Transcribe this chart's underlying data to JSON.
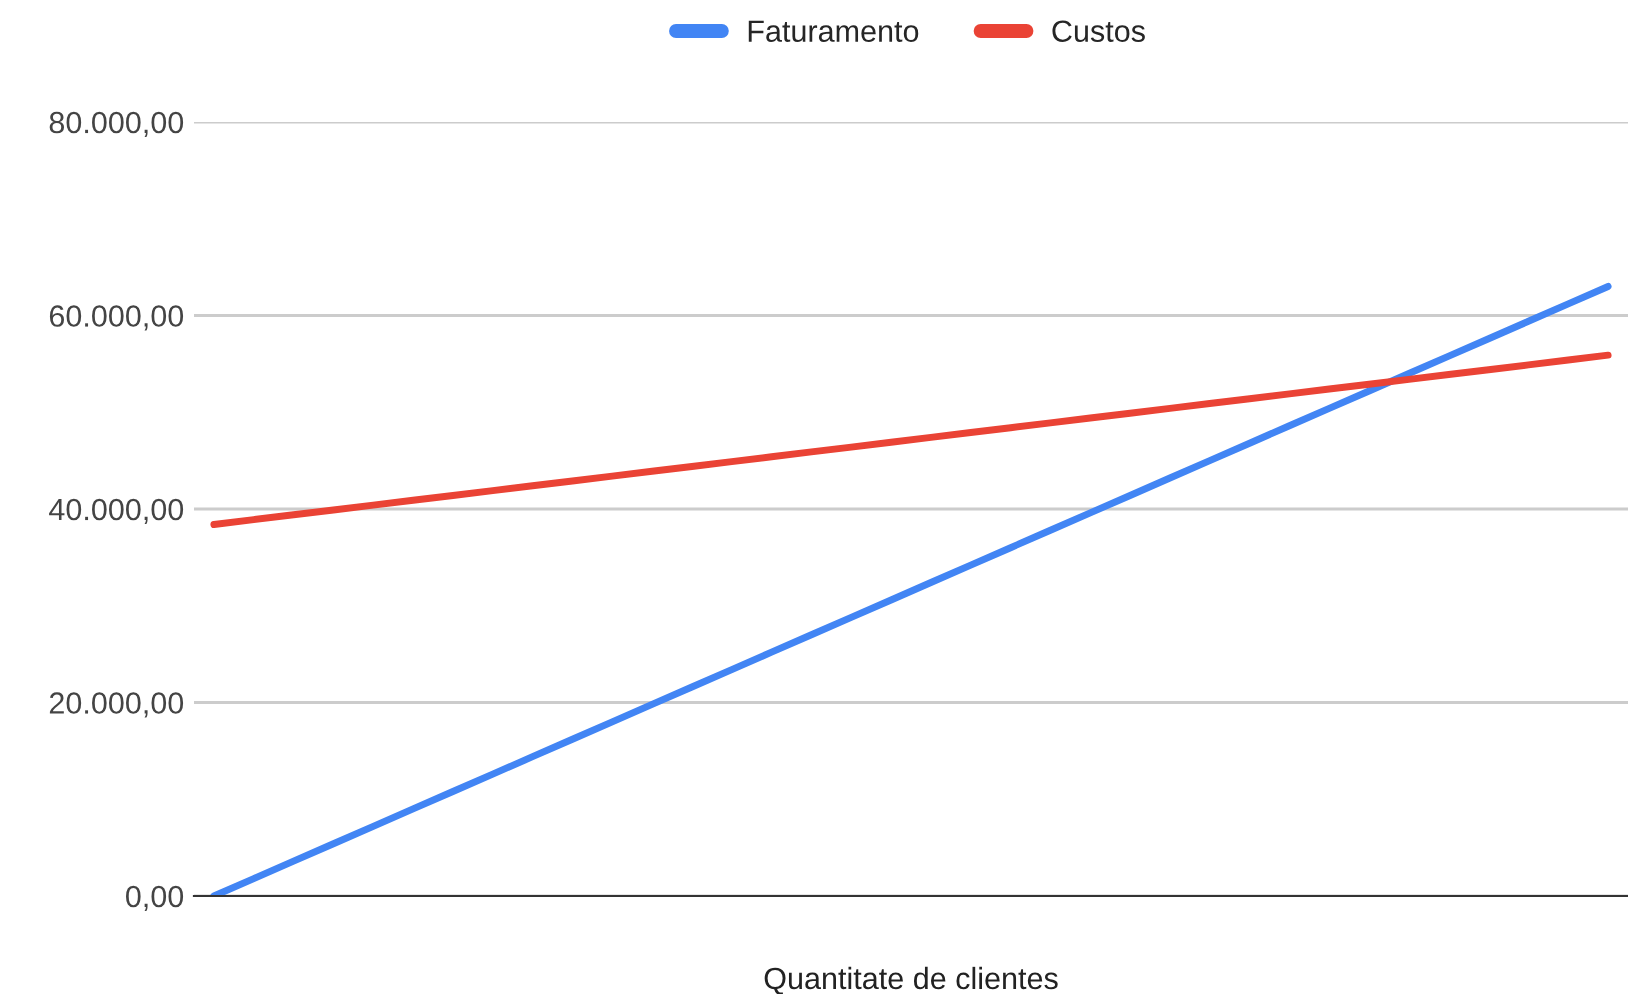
{
  "chart_data": {
    "type": "line",
    "xlabel": "Quantitate de clientes",
    "categories": [
      null,
      null,
      null,
      null,
      null,
      null,
      null,
      null,
      null,
      null,
      null,
      null,
      null,
      null,
      null,
      null,
      null,
      null,
      null,
      null,
      null,
      null,
      null,
      null,
      null,
      null,
      null,
      null,
      null,
      null,
      null,
      null,
      null,
      null,
      null,
      null
    ],
    "series": [
      {
        "name": "Faturamento",
        "color": "#4285f4",
        "values": [
          0,
          1800,
          3600,
          5400,
          7200,
          9000,
          10800,
          12600,
          14400,
          16200,
          18000,
          19800,
          21600,
          23400,
          25200,
          27000,
          28800,
          30600,
          32400,
          34200,
          36000,
          37800,
          39600,
          41400,
          43200,
          45000,
          46800,
          48600,
          50400,
          52200,
          54000,
          55800,
          57600,
          59400,
          61200,
          63000
        ]
      },
      {
        "name": "Custos",
        "color": "#ea4335",
        "values": [
          38400,
          38900,
          39400,
          39900,
          40400,
          40900,
          41400,
          41900,
          42400,
          42900,
          43400,
          43900,
          44400,
          44900,
          45400,
          45900,
          46400,
          46900,
          47400,
          47900,
          48400,
          48900,
          49400,
          49900,
          50400,
          50900,
          51400,
          51900,
          52400,
          52900,
          53400,
          53900,
          54400,
          54900,
          55400,
          55900
        ]
      }
    ],
    "ylim": [
      0,
      80000
    ],
    "yticks": [
      {
        "value": 0,
        "label": "0,00"
      },
      {
        "value": 20000,
        "label": "20.000,00"
      },
      {
        "value": 40000,
        "label": "40.000,00"
      },
      {
        "value": 60000,
        "label": "60.000,00"
      },
      {
        "value": 80000,
        "label": "80.000,00"
      }
    ],
    "grid": "y",
    "legend": "top",
    "marker": "none",
    "line_style": "solid"
  }
}
